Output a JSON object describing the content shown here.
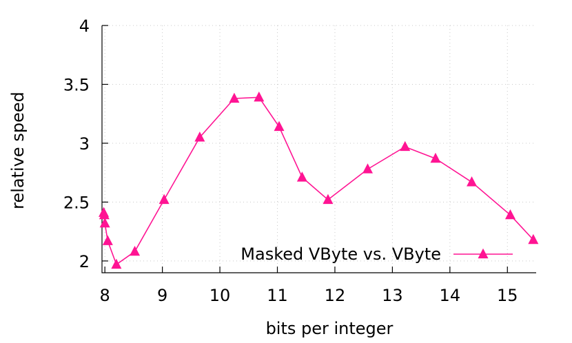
{
  "chart_data": {
    "type": "line",
    "xlabel": "bits per integer",
    "ylabel": "relative speed",
    "xlim": [
      7.95,
      15.5
    ],
    "ylim": [
      1.9,
      4
    ],
    "x_ticks": [
      "8",
      "9",
      "10",
      "11",
      "12",
      "13",
      "14",
      "15"
    ],
    "y_ticks": [
      "2",
      "2.5",
      "3",
      "3.5",
      "4"
    ],
    "grid": true,
    "legend_position": "bottom-right",
    "series": [
      {
        "name": "Masked VByte vs.  VByte",
        "color": "#ff1493",
        "marker": "triangle",
        "points": [
          {
            "x": 7.98,
            "y": 2.41
          },
          {
            "x": 7.99,
            "y": 2.39
          },
          {
            "x": 8.0,
            "y": 2.32
          },
          {
            "x": 8.05,
            "y": 2.17
          },
          {
            "x": 8.2,
            "y": 1.97
          },
          {
            "x": 8.52,
            "y": 2.08
          },
          {
            "x": 9.03,
            "y": 2.52
          },
          {
            "x": 9.65,
            "y": 3.05
          },
          {
            "x": 10.25,
            "y": 3.38
          },
          {
            "x": 10.68,
            "y": 3.39
          },
          {
            "x": 11.03,
            "y": 3.14
          },
          {
            "x": 11.43,
            "y": 2.71
          },
          {
            "x": 11.88,
            "y": 2.52
          },
          {
            "x": 12.57,
            "y": 2.78
          },
          {
            "x": 13.22,
            "y": 2.97
          },
          {
            "x": 13.75,
            "y": 2.87
          },
          {
            "x": 14.38,
            "y": 2.67
          },
          {
            "x": 15.05,
            "y": 2.39
          },
          {
            "x": 15.45,
            "y": 2.18
          }
        ]
      }
    ]
  }
}
